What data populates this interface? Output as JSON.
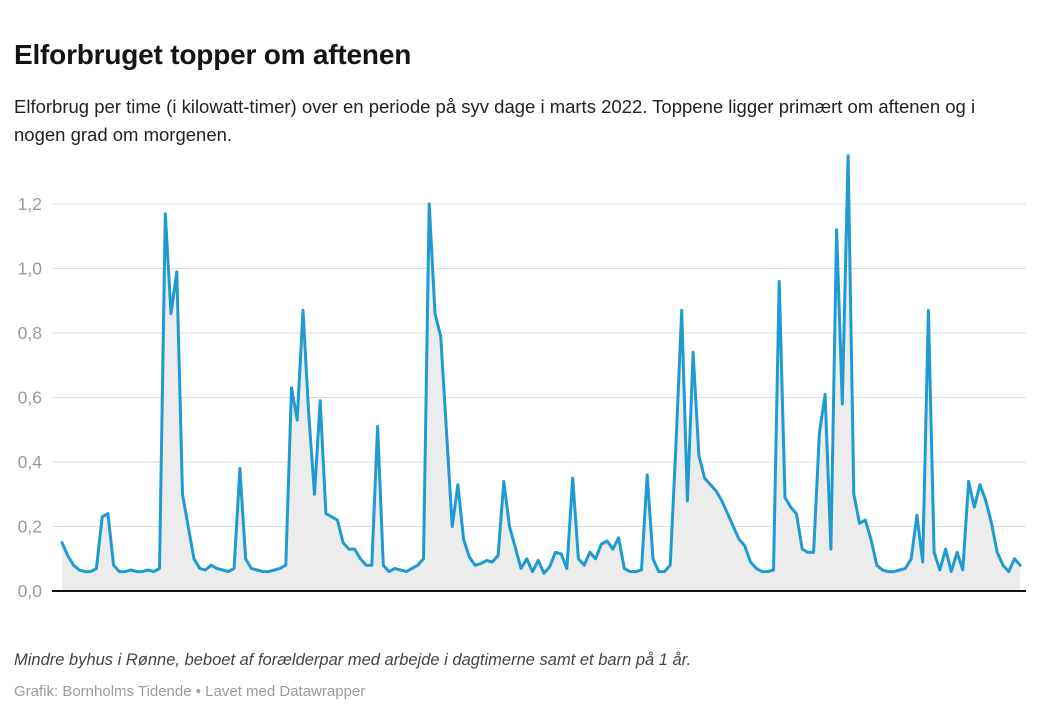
{
  "header": {
    "title": "Elforbruget topper om aftenen",
    "subtitle": "Elforbrug per time (i kilowatt-timer) over en periode på syv dage i marts 2022. Toppene ligger primært om aftenen og i nogen grad om morgenen."
  },
  "footer": {
    "note": "Mindre byhus i Rønne, beboet af forælderpar med arbejde i dagtimerne samt et barn på 1 år.",
    "credit": "Grafik: Bornholms Tidende • Lavet med Datawrapper"
  },
  "chart_data": {
    "type": "area",
    "title": "Elforbruget topper om aftenen",
    "xlabel": "",
    "ylabel": "",
    "x_description": "168 hourly readings over seven days in March 2022 (no x-axis labels shown)",
    "unit": "kilowatt-timer",
    "ylim": [
      0,
      1.4
    ],
    "grid": "horizontal",
    "legend": "none",
    "yticks": {
      "values": [
        0.0,
        0.2,
        0.4,
        0.6,
        0.8,
        1.0,
        1.2
      ],
      "labels": [
        "0,0",
        "0,2",
        "0,4",
        "0,6",
        "0,8",
        "1,0",
        "1,2"
      ]
    },
    "colors": {
      "line": "#1E9CD2",
      "area_fill": "#ECECEC",
      "gridline": "#DCDCDC",
      "axis": "#111111",
      "tick_label": "#9B9B9B"
    },
    "values": [
      0.15,
      0.11,
      0.08,
      0.065,
      0.06,
      0.06,
      0.07,
      0.23,
      0.24,
      0.08,
      0.06,
      0.06,
      0.065,
      0.06,
      0.06,
      0.065,
      0.06,
      0.07,
      1.17,
      0.86,
      0.99,
      0.3,
      0.2,
      0.1,
      0.07,
      0.065,
      0.08,
      0.07,
      0.065,
      0.06,
      0.07,
      0.38,
      0.1,
      0.07,
      0.065,
      0.06,
      0.06,
      0.065,
      0.07,
      0.08,
      0.63,
      0.53,
      0.87,
      0.55,
      0.3,
      0.59,
      0.24,
      0.23,
      0.22,
      0.15,
      0.13,
      0.13,
      0.1,
      0.08,
      0.08,
      0.51,
      0.08,
      0.06,
      0.07,
      0.065,
      0.06,
      0.07,
      0.08,
      0.1,
      1.2,
      0.86,
      0.79,
      0.5,
      0.2,
      0.33,
      0.16,
      0.105,
      0.08,
      0.085,
      0.095,
      0.09,
      0.11,
      0.34,
      0.2,
      0.135,
      0.07,
      0.1,
      0.06,
      0.095,
      0.055,
      0.075,
      0.12,
      0.115,
      0.07,
      0.35,
      0.1,
      0.08,
      0.12,
      0.1,
      0.145,
      0.155,
      0.13,
      0.165,
      0.07,
      0.06,
      0.06,
      0.065,
      0.36,
      0.1,
      0.06,
      0.06,
      0.08,
      0.45,
      0.87,
      0.28,
      0.74,
      0.42,
      0.35,
      0.33,
      0.31,
      0.28,
      0.24,
      0.2,
      0.16,
      0.14,
      0.09,
      0.07,
      0.06,
      0.06,
      0.065,
      0.96,
      0.29,
      0.26,
      0.24,
      0.13,
      0.12,
      0.12,
      0.49,
      0.61,
      0.13,
      1.12,
      0.58,
      1.35,
      0.3,
      0.21,
      0.22,
      0.16,
      0.08,
      0.065,
      0.06,
      0.06,
      0.065,
      0.07,
      0.1,
      0.235,
      0.09,
      0.87,
      0.12,
      0.065,
      0.13,
      0.06,
      0.12,
      0.065,
      0.34,
      0.26,
      0.33,
      0.28,
      0.21,
      0.12,
      0.08,
      0.06,
      0.1,
      0.08
    ]
  }
}
